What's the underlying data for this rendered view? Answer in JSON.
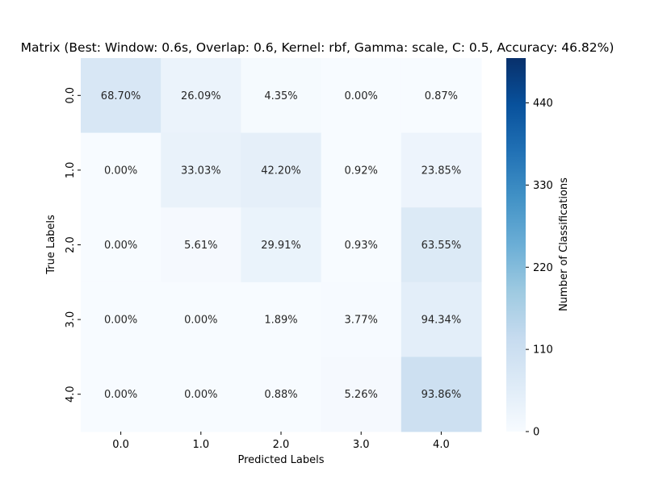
{
  "chart_data": {
    "type": "heatmap",
    "title": "Matrix (Best: Window: 0.6s, Overlap: 0.6, Kernel: rbf, Gamma: scale, C: 0.5, Accuracy: 46.82%)",
    "xlabel": "Predicted Labels",
    "ylabel": "True Labels",
    "x_categories": [
      "0.0",
      "1.0",
      "2.0",
      "3.0",
      "4.0"
    ],
    "y_categories": [
      "0.0",
      "1.0",
      "2.0",
      "3.0",
      "4.0"
    ],
    "cell_labels": [
      [
        "68.70%",
        "26.09%",
        "4.35%",
        "0.00%",
        "0.87%"
      ],
      [
        "0.00%",
        "33.03%",
        "42.20%",
        "0.92%",
        "23.85%"
      ],
      [
        "0.00%",
        "5.61%",
        "29.91%",
        "0.93%",
        "63.55%"
      ],
      [
        "0.00%",
        "0.00%",
        "1.89%",
        "3.77%",
        "94.34%"
      ],
      [
        "0.00%",
        "0.00%",
        "0.88%",
        "5.26%",
        "93.86%"
      ]
    ],
    "values": [
      [
        79,
        30,
        5,
        0,
        1
      ],
      [
        0,
        36,
        46,
        1,
        26
      ],
      [
        0,
        6,
        32,
        1,
        68
      ],
      [
        0,
        0,
        1,
        2,
        50
      ],
      [
        0,
        0,
        1,
        6,
        107
      ]
    ],
    "colorbar": {
      "label": "Number of Classifications",
      "ticks": [
        "0",
        "110",
        "220",
        "330",
        "440"
      ],
      "range": [
        0,
        500
      ],
      "colormap": "Blues"
    }
  }
}
